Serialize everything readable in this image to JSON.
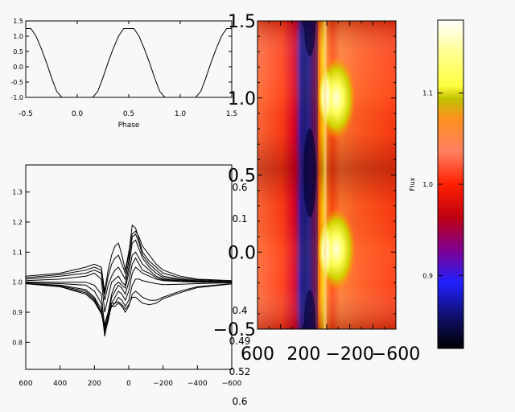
{
  "chart_data": [
    {
      "type": "line",
      "panel": "phase-curve",
      "xlabel": "Phase",
      "ylabel": "",
      "xlim": [
        -0.5,
        1.5
      ],
      "ylim": [
        -1.0,
        1.5
      ],
      "x_ticks": [
        "-0.5",
        "0.0",
        "0.5",
        "1.0",
        "1.5"
      ],
      "y_ticks": [
        "-1.0",
        "-0.5",
        "0.0",
        "0.5",
        "1.0",
        "1.5"
      ],
      "series": [
        {
          "x": [
            -0.5,
            -0.45,
            -0.4,
            -0.35,
            -0.3,
            -0.25,
            -0.2,
            -0.15,
            -0.1,
            -0.05,
            0.0,
            0.05,
            0.1,
            0.15,
            0.2,
            0.25,
            0.3,
            0.35,
            0.4,
            0.45,
            0.5,
            0.55,
            0.6,
            0.65,
            0.7,
            0.75,
            0.8,
            0.85,
            0.9,
            0.95,
            1.0,
            1.05,
            1.1,
            1.15,
            1.2,
            1.25,
            1.3,
            1.35,
            1.4,
            1.45,
            1.5
          ],
          "values": [
            1.25,
            1.25,
            1.0,
            0.6,
            0.15,
            -0.35,
            -0.8,
            -1.0,
            -1.0,
            -1.0,
            -1.0,
            -1.0,
            -1.0,
            -1.0,
            -0.8,
            -0.35,
            0.15,
            0.6,
            1.0,
            1.25,
            1.25,
            1.25,
            1.0,
            0.6,
            0.15,
            -0.35,
            -0.8,
            -1.0,
            -1.0,
            -1.0,
            -1.0,
            -1.0,
            -1.0,
            -1.0,
            -0.8,
            -0.35,
            0.15,
            0.6,
            1.0,
            1.25,
            1.25
          ]
        }
      ]
    },
    {
      "type": "line",
      "panel": "line-profiles",
      "xlabel": "",
      "ylabel": "",
      "xlim": [
        600,
        -600
      ],
      "ylim": [
        0.71,
        1.39
      ],
      "x_ticks": [
        "600",
        "400",
        "200",
        "0",
        "−200",
        "−400",
        "−600"
      ],
      "y_ticks": [
        "0.8",
        "0.9",
        "1.0",
        "1.1",
        "1.2",
        "1.3"
      ],
      "x": [
        600,
        400,
        250,
        200,
        160,
        140,
        120,
        100,
        80,
        60,
        40,
        20,
        0,
        -20,
        -40,
        -60,
        -80,
        -120,
        -160,
        -200,
        -300,
        -400,
        -600
      ],
      "series": [
        {
          "values": [
            1.02,
            1.03,
            1.05,
            1.06,
            1.05,
            0.97,
            1.04,
            1.09,
            1.12,
            1.13,
            1.09,
            1.04,
            1.1,
            1.16,
            1.17,
            1.15,
            1.12,
            1.09,
            1.06,
            1.04,
            1.02,
            1.01,
            1.005
          ]
        },
        {
          "values": [
            1.015,
            1.025,
            1.04,
            1.05,
            1.04,
            0.96,
            1.02,
            1.06,
            1.08,
            1.09,
            1.06,
            1.03,
            1.09,
            1.19,
            1.18,
            1.14,
            1.1,
            1.07,
            1.05,
            1.03,
            1.015,
            1.008,
            1.003
          ]
        },
        {
          "values": [
            1.01,
            1.02,
            1.03,
            1.04,
            1.03,
            0.94,
            0.99,
            1.02,
            1.04,
            1.05,
            1.03,
            1.01,
            1.07,
            1.15,
            1.16,
            1.13,
            1.09,
            1.06,
            1.04,
            1.02,
            1.01,
            1.005,
            1.0
          ]
        },
        {
          "values": [
            1.005,
            1.01,
            1.02,
            1.03,
            1.01,
            0.9,
            0.95,
            1.0,
            1.01,
            1.02,
            1.0,
            0.99,
            1.05,
            1.13,
            1.14,
            1.11,
            1.08,
            1.05,
            1.03,
            1.015,
            1.008,
            1.003,
            1.0
          ]
        },
        {
          "values": [
            1.0,
            1.0,
            1.0,
            0.99,
            0.96,
            0.85,
            0.9,
            0.96,
            0.99,
            1.0,
            0.99,
            0.98,
            1.03,
            1.09,
            1.1,
            1.08,
            1.06,
            1.04,
            1.02,
            1.01,
            1.005,
            1.002,
            1.0
          ]
        },
        {
          "values": [
            0.998,
            0.995,
            0.99,
            0.97,
            0.93,
            0.82,
            0.88,
            0.95,
            0.97,
            0.99,
            0.98,
            0.96,
            1.0,
            1.06,
            1.08,
            1.06,
            1.04,
            1.03,
            1.015,
            1.008,
            1.003,
            1.001,
            1.0
          ]
        },
        {
          "values": [
            0.996,
            0.99,
            0.975,
            0.95,
            0.91,
            0.83,
            0.87,
            0.93,
            0.95,
            0.97,
            0.96,
            0.94,
            0.97,
            1.03,
            1.05,
            1.04,
            1.03,
            1.02,
            1.01,
            1.005,
            1.002,
            1.0,
            1.0
          ]
        },
        {
          "values": [
            0.995,
            0.985,
            0.965,
            0.94,
            0.9,
            0.84,
            0.88,
            0.92,
            0.93,
            0.95,
            0.94,
            0.92,
            0.94,
            0.99,
            1.01,
            1.01,
            1.005,
            1.0,
            0.995,
            0.992,
            0.993,
            0.995,
            0.998
          ]
        },
        {
          "values": [
            0.995,
            0.985,
            0.96,
            0.935,
            0.895,
            0.85,
            0.89,
            0.92,
            0.92,
            0.93,
            0.92,
            0.9,
            0.92,
            0.96,
            0.97,
            0.96,
            0.95,
            0.94,
            0.94,
            0.95,
            0.97,
            0.985,
            0.995
          ]
        },
        {
          "values": [
            0.996,
            0.988,
            0.97,
            0.945,
            0.9,
            0.86,
            0.9,
            0.93,
            0.93,
            0.935,
            0.925,
            0.91,
            0.925,
            0.95,
            0.95,
            0.94,
            0.93,
            0.925,
            0.93,
            0.945,
            0.965,
            0.982,
            0.994
          ]
        }
      ]
    },
    {
      "type": "heatmap",
      "panel": "dynamic-spectrum",
      "xlabel": "",
      "ylabel": "",
      "xlim": [
        600,
        -600
      ],
      "ylim": [
        -0.5,
        1.5
      ],
      "x_ticks": [
        "600",
        "200",
        "−200",
        "−600"
      ],
      "y_ticks": [
        "−0.5",
        "0.0",
        "0.5",
        "1.0",
        "1.5"
      ],
      "overlap_ticks": [
        "0.6",
        "0.1",
        "0.4",
        "0.49",
        "0.52",
        "0.6"
      ],
      "colorbar": {
        "label": "Flux",
        "ticks": [
          "0.9",
          "1.0",
          "1.1"
        ],
        "range": [
          0.82,
          1.18
        ]
      }
    }
  ]
}
